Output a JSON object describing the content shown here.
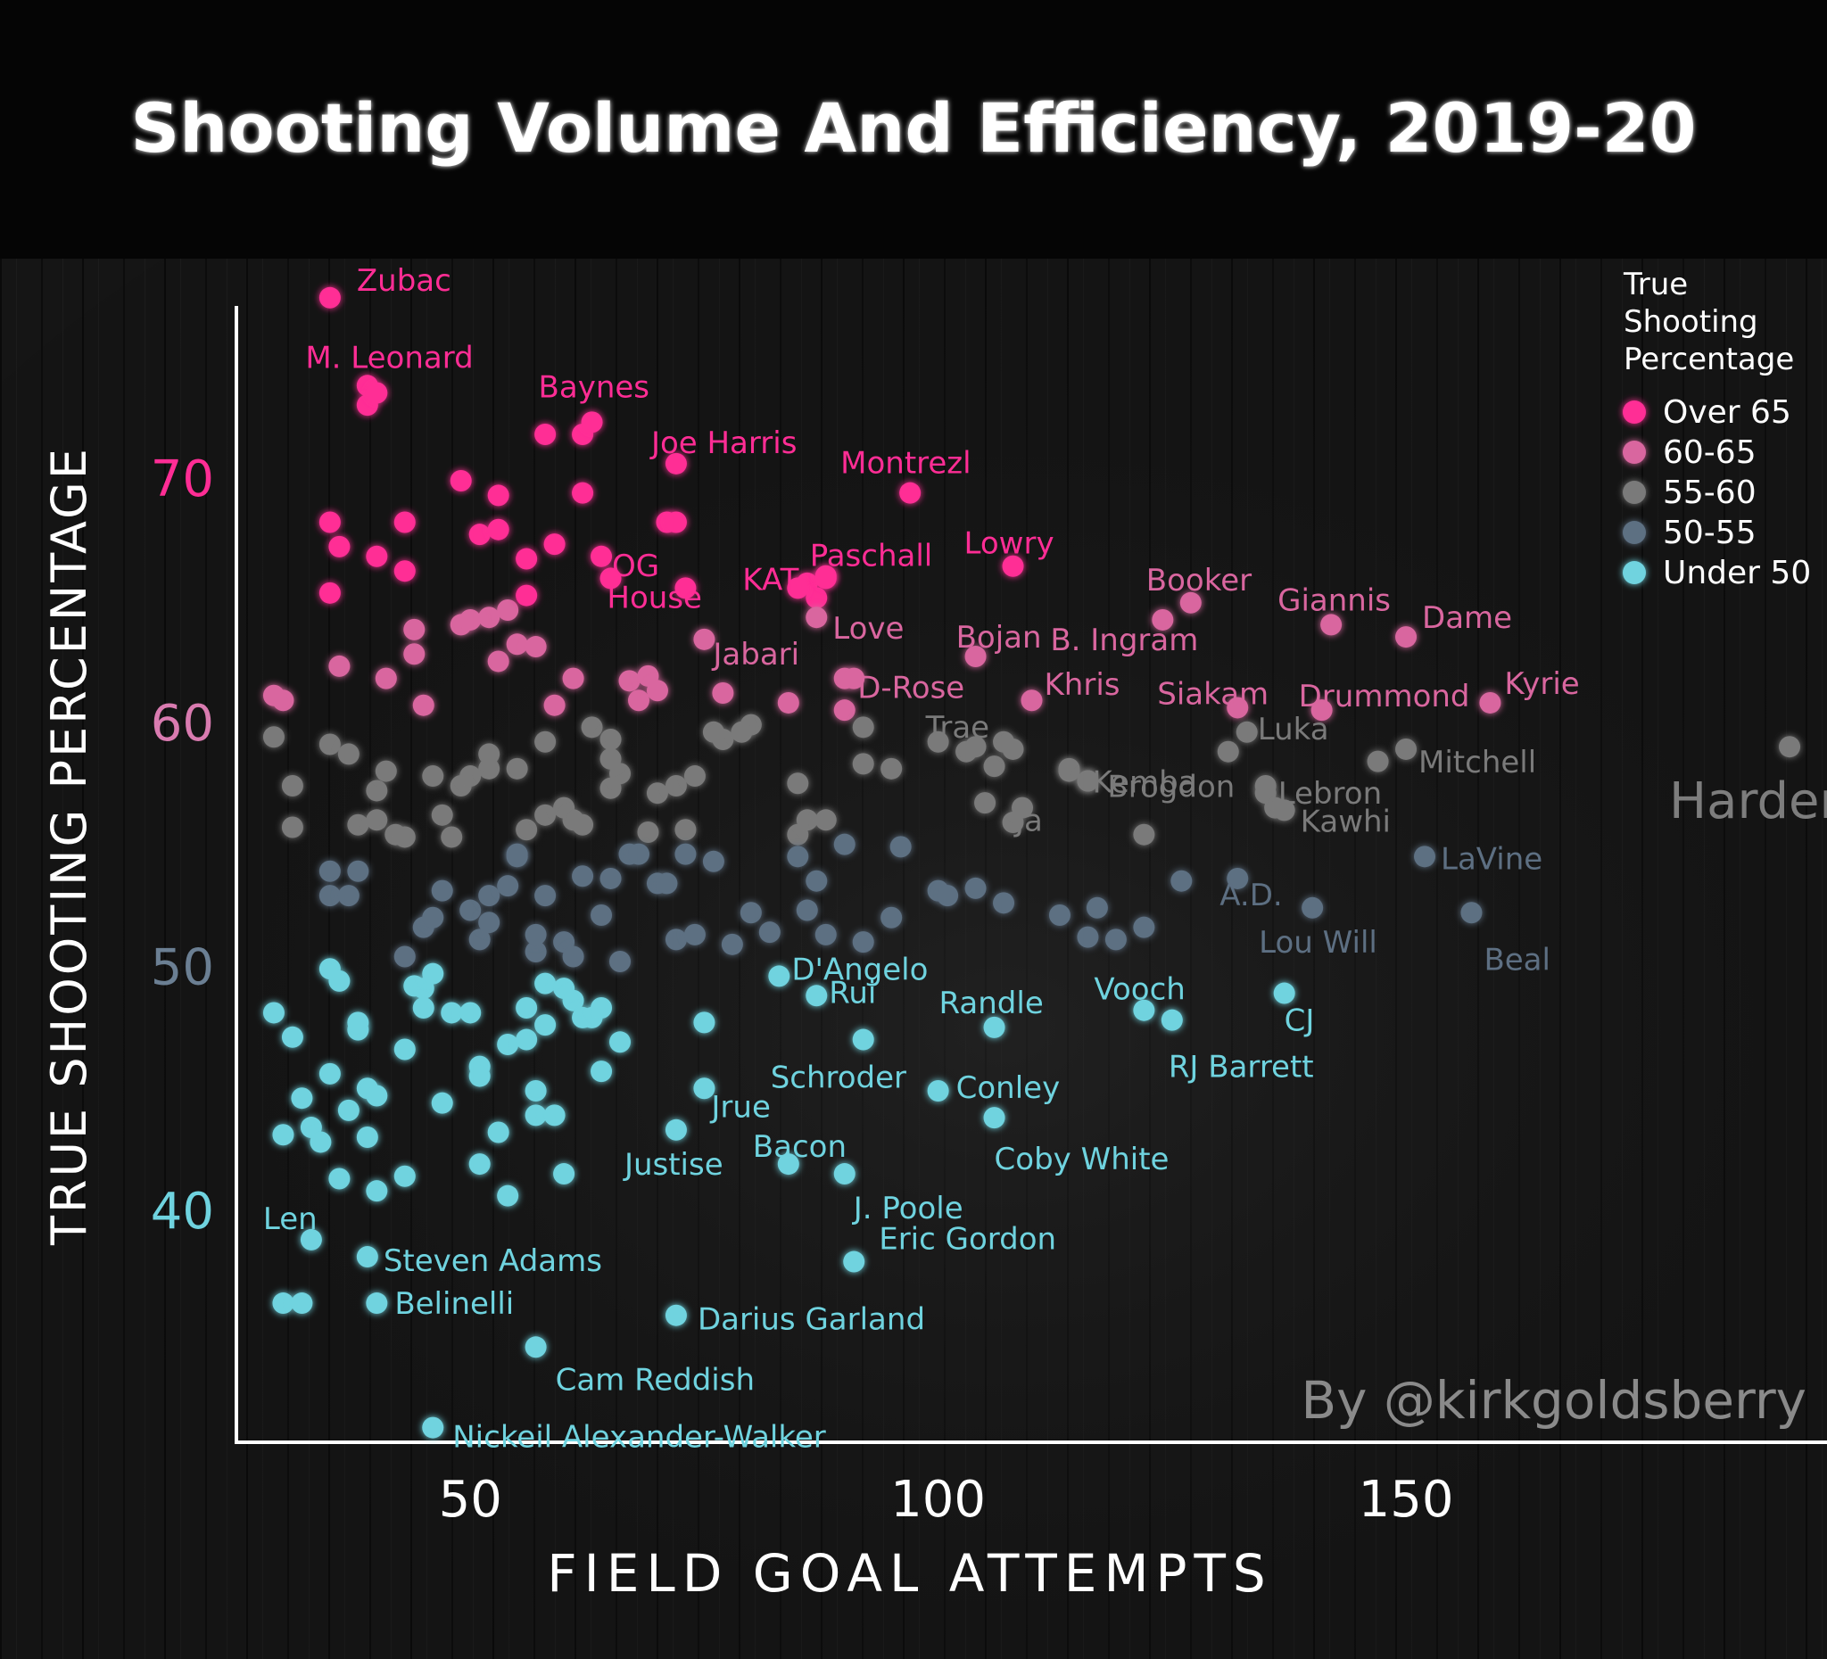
{
  "chart_data": {
    "type": "scatter",
    "title": "Shooting Volume And Efficiency, 2019-20",
    "xlabel": "FIELD GOAL ATTEMPTS",
    "ylabel": "TRUE SHOOTING PERCENTAGE",
    "xlim": [
      25,
      195
    ],
    "ylim": [
      30.5,
      79
    ],
    "xticks": [
      50,
      100,
      150
    ],
    "yticks": [
      {
        "value": 70,
        "label": "70",
        "color": "#ff2d95"
      },
      {
        "value": 60,
        "label": "60",
        "color": "#d97bb0"
      },
      {
        "value": 50,
        "label": "50",
        "color": "#6b7f93"
      },
      {
        "value": 40,
        "label": "40",
        "color": "#6fd3df"
      }
    ],
    "legend": {
      "title": [
        "True",
        "Shooting",
        "Percentage"
      ],
      "position": "top-right",
      "items": [
        {
          "label": "Over 65",
          "color": "#ff2d95"
        },
        {
          "label": "60-65",
          "color": "#d9669f"
        },
        {
          "label": "55-60",
          "color": "#7a7a7a"
        },
        {
          "label": "50-55",
          "color": "#5d6f82"
        },
        {
          "label": "Under 50",
          "color": "#6fd3df"
        }
      ]
    },
    "credit": "By @kirkgoldsberry",
    "grid": false,
    "labeled_points": [
      {
        "name": "Zubac",
        "x": 35,
        "y": 77.4
      },
      {
        "name": "M. Leonard",
        "x": 40,
        "y": 73.5
      },
      {
        "name": "Baynes",
        "x": 63,
        "y": 72.3
      },
      {
        "name": "Joe Harris",
        "x": 72,
        "y": 70.6
      },
      {
        "name": "Montrezl",
        "x": 97,
        "y": 69.4
      },
      {
        "name": "Lowry",
        "x": 108,
        "y": 66.4
      },
      {
        "name": "OG",
        "x": 64,
        "y": 66.8
      },
      {
        "name": "KAT",
        "x": 85,
        "y": 65.5
      },
      {
        "name": "Paschall",
        "x": 88,
        "y": 65.9
      },
      {
        "name": "House",
        "x": 73,
        "y": 65.5
      },
      {
        "name": "Booker",
        "x": 127,
        "y": 64.9
      },
      {
        "name": "Giannis",
        "x": 142,
        "y": 64.0
      },
      {
        "name": "Dame",
        "x": 150,
        "y": 63.5
      },
      {
        "name": "Jabari",
        "x": 75,
        "y": 63.4
      },
      {
        "name": "Love",
        "x": 87,
        "y": 64.3
      },
      {
        "name": "Bojan",
        "x": 104,
        "y": 62.7
      },
      {
        "name": "B. Ingram",
        "x": 124,
        "y": 64.2
      },
      {
        "name": "D-Rose",
        "x": 91,
        "y": 61.8
      },
      {
        "name": "Khris",
        "x": 110,
        "y": 60.9
      },
      {
        "name": "Siakam",
        "x": 132,
        "y": 60.6
      },
      {
        "name": "Drummond",
        "x": 141,
        "y": 60.5
      },
      {
        "name": "Kyrie",
        "x": 159,
        "y": 60.8
      },
      {
        "name": "Trae",
        "x": 104,
        "y": 59.0
      },
      {
        "name": "Kemba",
        "x": 114,
        "y": 58.0
      },
      {
        "name": "Luka",
        "x": 133,
        "y": 59.6
      },
      {
        "name": "Ja",
        "x": 109,
        "y": 56.5
      },
      {
        "name": "Brogdon",
        "x": 116,
        "y": 57.6
      },
      {
        "name": "Lebron",
        "x": 135,
        "y": 57.1
      },
      {
        "name": "Mitchell",
        "x": 150,
        "y": 58.9
      },
      {
        "name": "Kawhi",
        "x": 137,
        "y": 56.4
      },
      {
        "name": "A.D.",
        "x": 132,
        "y": 53.6
      },
      {
        "name": "Harden",
        "x": 191,
        "y": 59.0
      },
      {
        "name": "LaVine",
        "x": 152,
        "y": 54.5
      },
      {
        "name": "Lou Will",
        "x": 140,
        "y": 52.4
      },
      {
        "name": "Beal",
        "x": 157,
        "y": 52.2
      },
      {
        "name": "D'Angelo",
        "x": 83,
        "y": 49.6
      },
      {
        "name": "Rui",
        "x": 87,
        "y": 48.8
      },
      {
        "name": "Randle",
        "x": 106,
        "y": 47.5
      },
      {
        "name": "Vooch",
        "x": 122,
        "y": 48.2
      },
      {
        "name": "CJ",
        "x": 137,
        "y": 48.9
      },
      {
        "name": "RJ Barrett",
        "x": 125,
        "y": 47.8
      },
      {
        "name": "Schroder",
        "x": 92,
        "y": 47.0
      },
      {
        "name": "Jrue",
        "x": 75,
        "y": 45.0
      },
      {
        "name": "Conley",
        "x": 100,
        "y": 44.9
      },
      {
        "name": "Bacon",
        "x": 84,
        "y": 41.9
      },
      {
        "name": "Justise",
        "x": 72,
        "y": 43.3
      },
      {
        "name": "Coby White",
        "x": 106,
        "y": 43.8
      },
      {
        "name": "J. Poole",
        "x": 90,
        "y": 41.5
      },
      {
        "name": "Len",
        "x": 33,
        "y": 38.8
      },
      {
        "name": "Steven Adams",
        "x": 39,
        "y": 38.1
      },
      {
        "name": "Eric Gordon",
        "x": 91,
        "y": 37.9
      },
      {
        "name": "Belinelli",
        "x": 40,
        "y": 36.2
      },
      {
        "name": "Darius Garland",
        "x": 72,
        "y": 35.7
      },
      {
        "name": "Cam Reddish",
        "x": 57,
        "y": 34.4
      },
      {
        "name": "Nickeil Alexander-Walker",
        "x": 46,
        "y": 31.1
      }
    ],
    "other_points": [
      [
        30,
        60.9
      ],
      [
        29,
        61.1
      ],
      [
        35,
        68.2
      ],
      [
        36,
        67.2
      ],
      [
        35,
        65.3
      ],
      [
        36,
        62.3
      ],
      [
        40,
        66.8
      ],
      [
        41,
        61.8
      ],
      [
        43,
        68.2
      ],
      [
        43,
        66.2
      ],
      [
        44,
        63.8
      ],
      [
        44,
        62.8
      ],
      [
        45,
        60.7
      ],
      [
        39,
        73.8
      ],
      [
        39,
        73.0
      ],
      [
        49,
        69.9
      ],
      [
        51,
        67.7
      ],
      [
        53,
        67.9
      ],
      [
        53,
        69.3
      ],
      [
        52,
        64.3
      ],
      [
        53,
        62.5
      ],
      [
        54,
        64.6
      ],
      [
        55,
        63.2
      ],
      [
        56,
        66.7
      ],
      [
        56,
        65.2
      ],
      [
        57,
        63.1
      ],
      [
        58,
        71.8
      ],
      [
        59,
        67.3
      ],
      [
        59,
        60.7
      ],
      [
        62,
        69.4
      ],
      [
        62,
        71.8
      ],
      [
        61,
        61.8
      ],
      [
        63,
        59.8
      ],
      [
        65,
        65.9
      ],
      [
        67,
        61.7
      ],
      [
        68,
        60.9
      ],
      [
        69,
        61.9
      ],
      [
        70,
        61.3
      ],
      [
        71,
        68.2
      ],
      [
        72,
        68.2
      ],
      [
        77,
        61.2
      ],
      [
        80,
        59.9
      ],
      [
        84,
        60.8
      ],
      [
        86,
        65.7
      ],
      [
        87,
        65.1
      ],
      [
        88,
        66.0
      ],
      [
        90,
        61.8
      ],
      [
        90,
        60.5
      ],
      [
        92,
        59.8
      ],
      [
        49,
        64.0
      ],
      [
        50,
        64.2
      ],
      [
        29,
        59.4
      ],
      [
        31,
        57.4
      ],
      [
        31,
        55.7
      ],
      [
        35,
        59.1
      ],
      [
        37,
        58.7
      ],
      [
        38,
        55.8
      ],
      [
        40,
        56.0
      ],
      [
        40,
        57.2
      ],
      [
        41,
        58.0
      ],
      [
        42,
        55.4
      ],
      [
        43,
        55.3
      ],
      [
        46,
        57.8
      ],
      [
        47,
        56.2
      ],
      [
        48,
        55.3
      ],
      [
        49,
        57.4
      ],
      [
        50,
        57.8
      ],
      [
        52,
        58.1
      ],
      [
        52,
        58.7
      ],
      [
        55,
        58.1
      ],
      [
        56,
        55.6
      ],
      [
        58,
        56.2
      ],
      [
        58,
        59.2
      ],
      [
        60,
        56.5
      ],
      [
        61,
        56.0
      ],
      [
        62,
        55.8
      ],
      [
        65,
        57.3
      ],
      [
        66,
        57.9
      ],
      [
        65,
        59.3
      ],
      [
        65,
        58.5
      ],
      [
        69,
        55.5
      ],
      [
        70,
        57.1
      ],
      [
        72,
        57.4
      ],
      [
        73,
        55.6
      ],
      [
        74,
        57.8
      ],
      [
        76,
        59.6
      ],
      [
        77,
        59.3
      ],
      [
        79,
        59.6
      ],
      [
        85,
        57.5
      ],
      [
        85,
        55.4
      ],
      [
        86,
        56.0
      ],
      [
        88,
        56.0
      ],
      [
        90,
        55.0
      ],
      [
        92,
        58.3
      ],
      [
        95,
        58.1
      ],
      [
        96,
        54.9
      ],
      [
        100,
        59.2
      ],
      [
        103,
        58.8
      ],
      [
        105,
        56.7
      ],
      [
        106,
        58.2
      ],
      [
        107,
        59.2
      ],
      [
        108,
        58.9
      ],
      [
        108,
        55.9
      ],
      [
        114,
        58.1
      ],
      [
        116,
        57.6
      ],
      [
        122,
        55.4
      ],
      [
        131,
        58.8
      ],
      [
        135,
        57.4
      ],
      [
        136,
        56.5
      ],
      [
        147,
        58.4
      ],
      [
        35,
        53.9
      ],
      [
        35,
        52.9
      ],
      [
        37,
        52.9
      ],
      [
        43,
        50.4
      ],
      [
        45,
        51.6
      ],
      [
        46,
        52.0
      ],
      [
        47,
        53.1
      ],
      [
        50,
        52.3
      ],
      [
        51,
        51.1
      ],
      [
        52,
        51.8
      ],
      [
        52,
        52.9
      ],
      [
        54,
        53.3
      ],
      [
        55,
        54.6
      ],
      [
        57,
        50.6
      ],
      [
        57,
        51.3
      ],
      [
        58,
        52.9
      ],
      [
        60,
        51.0
      ],
      [
        61,
        50.4
      ],
      [
        62,
        53.7
      ],
      [
        64,
        52.1
      ],
      [
        65,
        53.6
      ],
      [
        66,
        50.2
      ],
      [
        67,
        54.6
      ],
      [
        68,
        54.6
      ],
      [
        70,
        53.4
      ],
      [
        71,
        53.4
      ],
      [
        72,
        51.1
      ],
      [
        73,
        54.6
      ],
      [
        74,
        51.3
      ],
      [
        76,
        54.3
      ],
      [
        78,
        50.9
      ],
      [
        80,
        52.2
      ],
      [
        82,
        51.4
      ],
      [
        85,
        54.5
      ],
      [
        86,
        52.3
      ],
      [
        87,
        53.5
      ],
      [
        88,
        51.3
      ],
      [
        92,
        51.0
      ],
      [
        95,
        52.0
      ],
      [
        100,
        53.1
      ],
      [
        101,
        52.9
      ],
      [
        104,
        53.2
      ],
      [
        107,
        52.6
      ],
      [
        113,
        52.1
      ],
      [
        116,
        51.2
      ],
      [
        117,
        52.4
      ],
      [
        119,
        51.1
      ],
      [
        122,
        51.6
      ],
      [
        126,
        53.5
      ],
      [
        38,
        53.9
      ],
      [
        55,
        54.5
      ]
    ],
    "cyan_points": [
      [
        29,
        48.1
      ],
      [
        31,
        47.1
      ],
      [
        32,
        44.6
      ],
      [
        33,
        43.4
      ],
      [
        30,
        43.1
      ],
      [
        34,
        42.8
      ],
      [
        35,
        45.6
      ],
      [
        36,
        41.3
      ],
      [
        37,
        44.1
      ],
      [
        38,
        47.4
      ],
      [
        38,
        47.7
      ],
      [
        39,
        45.0
      ],
      [
        40,
        44.7
      ],
      [
        39,
        43.0
      ],
      [
        40,
        40.8
      ],
      [
        43,
        41.4
      ],
      [
        43,
        46.6
      ],
      [
        44,
        49.2
      ],
      [
        45,
        49.1
      ],
      [
        45,
        48.3
      ],
      [
        46,
        49.7
      ],
      [
        47,
        44.4
      ],
      [
        48,
        48.1
      ],
      [
        50,
        48.1
      ],
      [
        51,
        45.9
      ],
      [
        51,
        45.5
      ],
      [
        51,
        41.9
      ],
      [
        53,
        43.2
      ],
      [
        54,
        40.6
      ],
      [
        54,
        46.8
      ],
      [
        56,
        48.3
      ],
      [
        56,
        47.0
      ],
      [
        57,
        44.9
      ],
      [
        57,
        43.9
      ],
      [
        58,
        47.6
      ],
      [
        58,
        49.3
      ],
      [
        59,
        43.9
      ],
      [
        60,
        49.1
      ],
      [
        60,
        41.5
      ],
      [
        61,
        48.6
      ],
      [
        62,
        47.9
      ],
      [
        63,
        47.9
      ],
      [
        64,
        45.7
      ],
      [
        64,
        48.3
      ],
      [
        66,
        46.9
      ],
      [
        75,
        47.7
      ],
      [
        30,
        36.2
      ],
      [
        32,
        36.2
      ],
      [
        35,
        49.9
      ],
      [
        36,
        49.4
      ]
    ]
  }
}
